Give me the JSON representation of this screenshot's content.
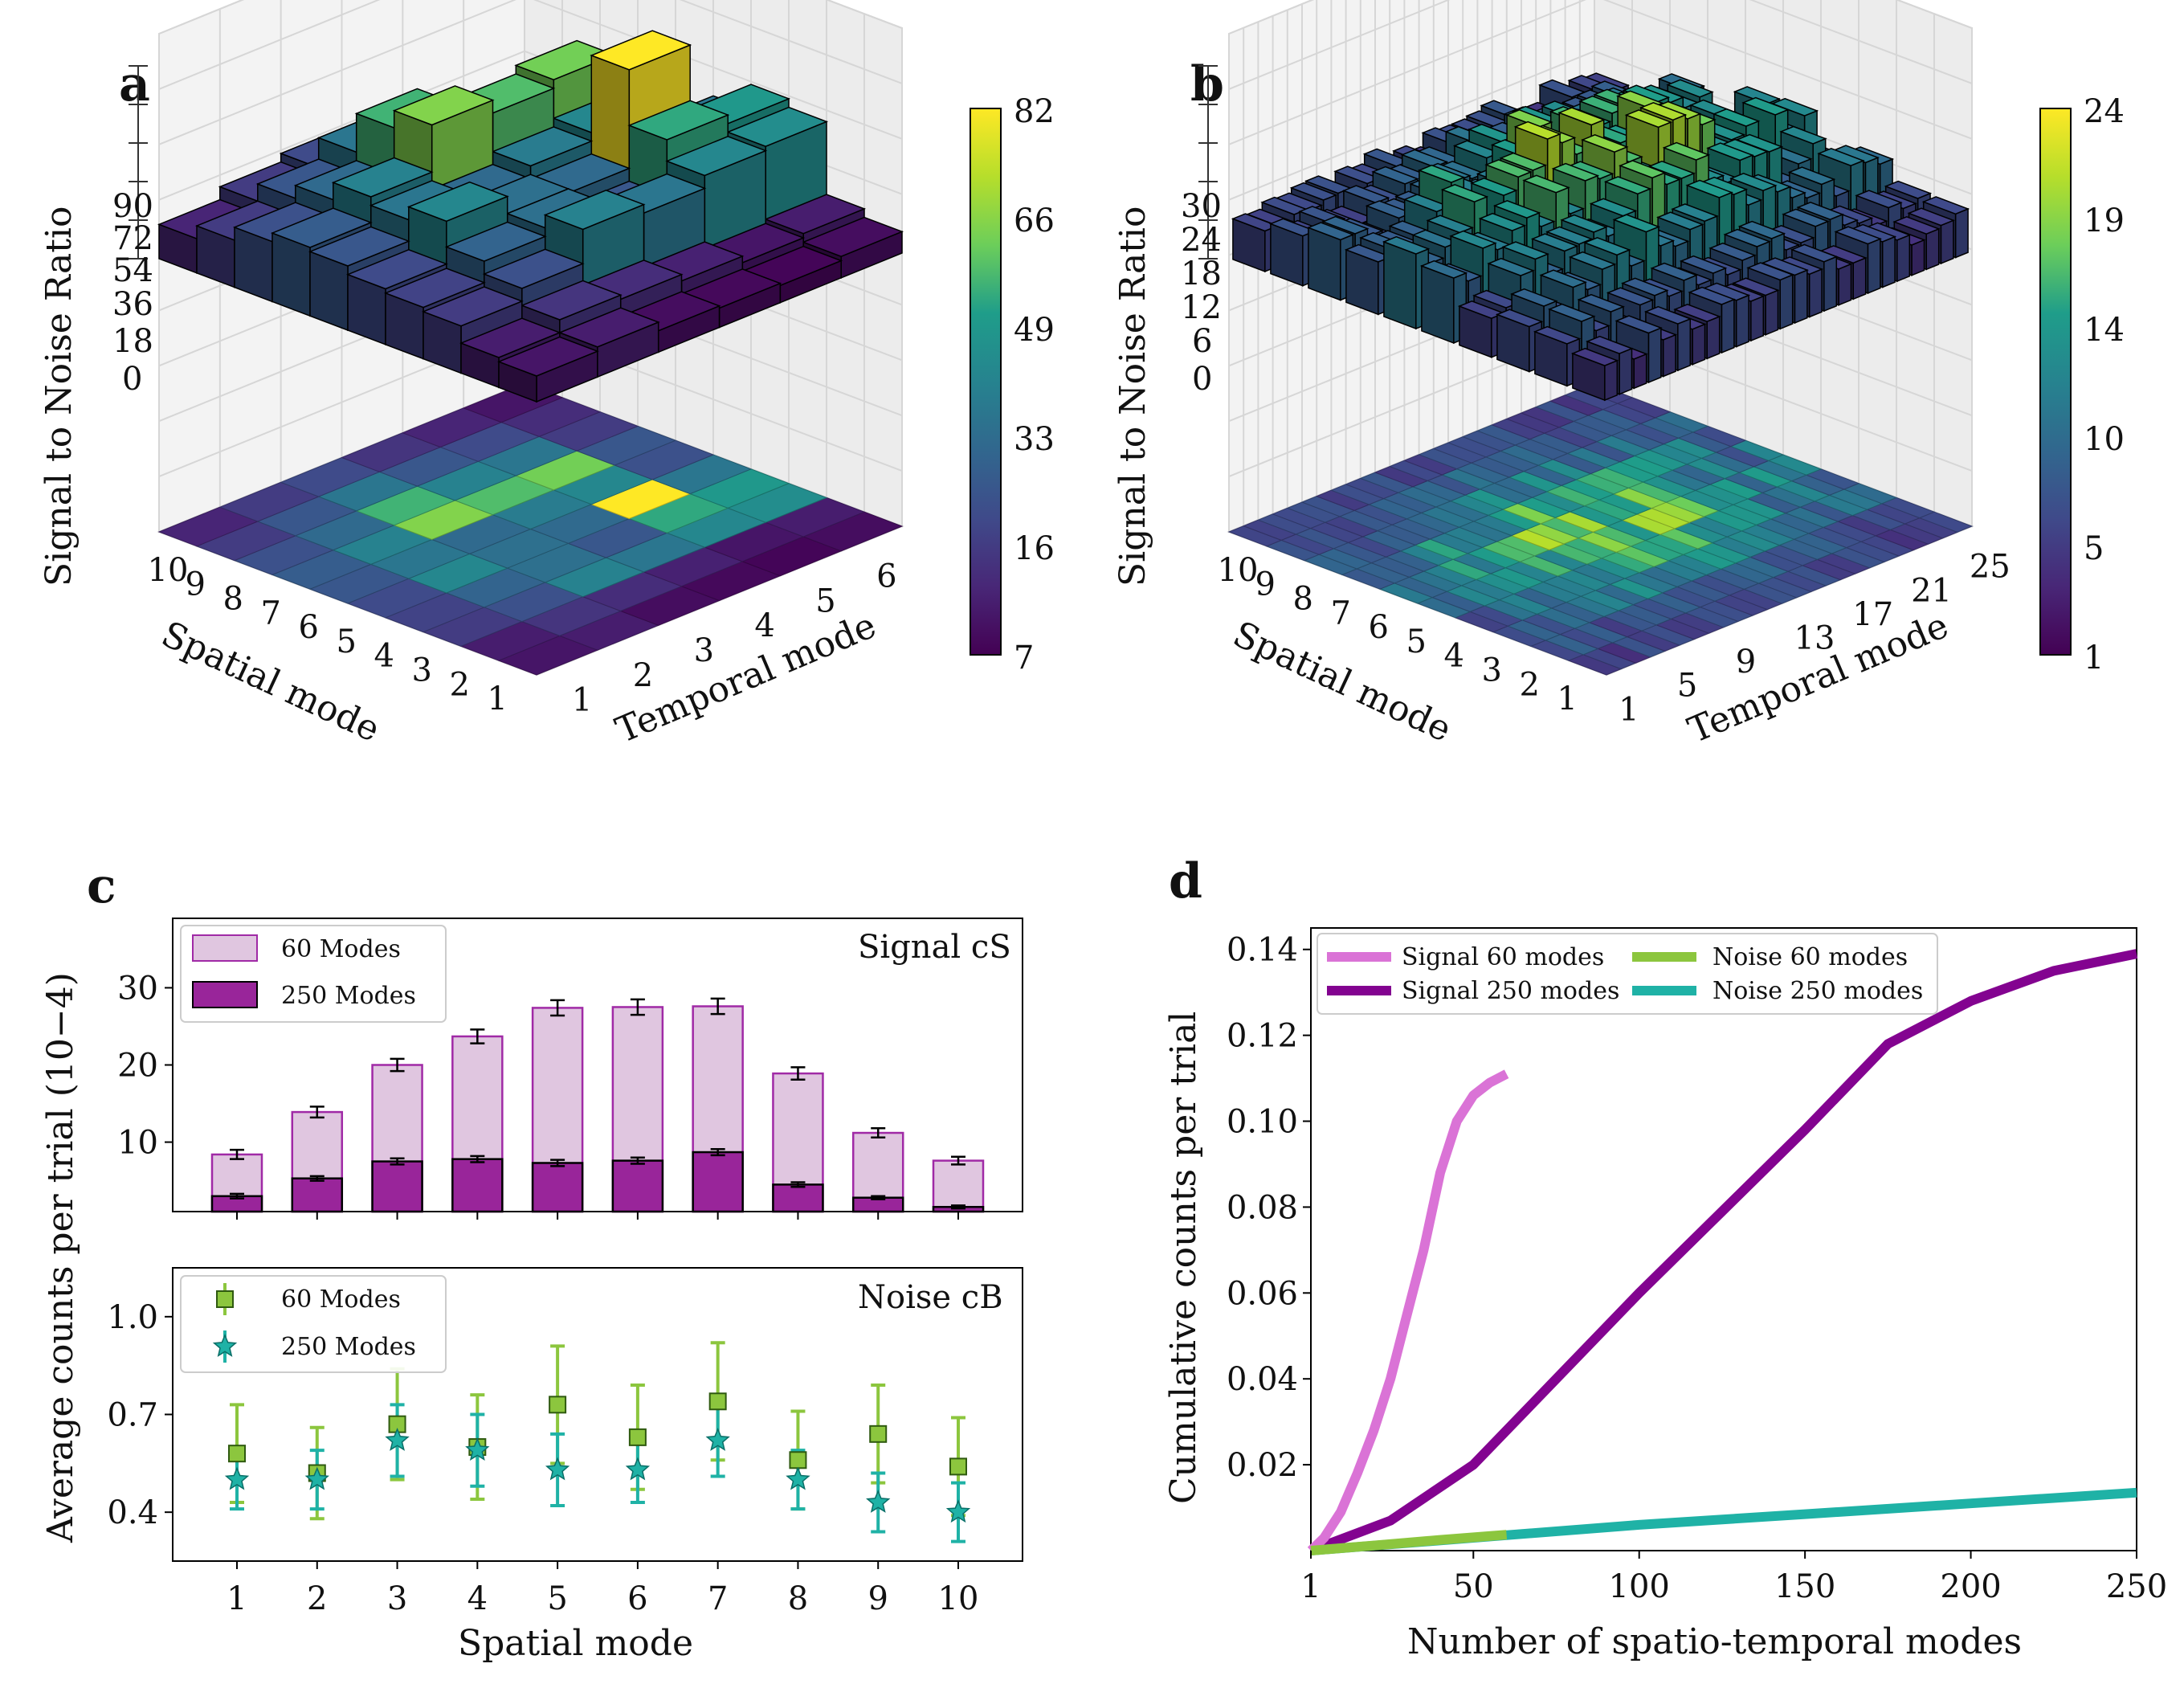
{
  "colors": {
    "signal60": "#da73d6",
    "signal250": "#830390",
    "noise60": "#8cc63e",
    "noise250": "#1fb2a6",
    "bar60_fill": "#e0c6e0",
    "bar60_edge": "#a02aa6",
    "bar250_fill": "#99259a",
    "viridis": [
      "#440154",
      "#482777",
      "#3f4a8a",
      "#31678e",
      "#26838f",
      "#1f9d8a",
      "#6cce5a",
      "#b6de2b",
      "#fee825"
    ]
  },
  "panel_a": {
    "letter": "a",
    "zlabel": "Signal to Noise Ratio",
    "z_ticks": [
      "90",
      "72",
      "54",
      "36",
      "18",
      "0"
    ],
    "xlabel": "Spatial mode",
    "x_ticks": [
      "10",
      "9",
      "8",
      "7",
      "6",
      "5",
      "4",
      "3",
      "2",
      "1"
    ],
    "ylabel": "Temporal mode",
    "y_ticks": [
      "1",
      "2",
      "3",
      "4",
      "5",
      "6"
    ],
    "colorbar_ticks": [
      "82",
      "66",
      "49",
      "33",
      "16",
      "7"
    ],
    "grid_spatial": 10,
    "grid_temporal": 6
  },
  "panel_b": {
    "letter": "b",
    "zlabel": "Signal to Noise Ratio",
    "z_ticks": [
      "30",
      "24",
      "18",
      "12",
      "6",
      "0"
    ],
    "xlabel": "Spatial mode",
    "x_ticks": [
      "10",
      "9",
      "8",
      "7",
      "6",
      "5",
      "4",
      "3",
      "2",
      "1"
    ],
    "ylabel": "Temporal mode",
    "y_ticks": [
      "1",
      "5",
      "9",
      "13",
      "17",
      "21",
      "25"
    ],
    "colorbar_ticks": [
      "24",
      "19",
      "14",
      "10",
      "5",
      "1"
    ],
    "grid_spatial": 10,
    "grid_temporal": 25
  },
  "chart_data": [
    {
      "panel": "c-top",
      "type": "bar",
      "categories": [
        "1",
        "2",
        "3",
        "4",
        "5",
        "6",
        "7",
        "8",
        "9",
        "10"
      ],
      "series": [
        {
          "name": "60 Modes",
          "values": [
            8.4,
            13.9,
            20.0,
            23.7,
            27.4,
            27.5,
            27.6,
            18.9,
            11.2,
            7.6
          ],
          "errors": [
            0.6,
            0.7,
            0.8,
            0.9,
            1.0,
            1.0,
            1.0,
            0.8,
            0.6,
            0.5
          ]
        },
        {
          "name": "250 Modes",
          "values": [
            3.0,
            5.3,
            7.5,
            7.8,
            7.3,
            7.6,
            8.7,
            4.5,
            2.8,
            1.6
          ],
          "errors": [
            0.3,
            0.3,
            0.4,
            0.4,
            0.4,
            0.4,
            0.4,
            0.3,
            0.2,
            0.2
          ]
        }
      ],
      "annotation": "Signal cS",
      "ylim": [
        1,
        39
      ],
      "yticks": [
        "10",
        "20",
        "30"
      ]
    },
    {
      "panel": "c-bottom",
      "type": "scatter",
      "categories": [
        "1",
        "2",
        "3",
        "4",
        "5",
        "6",
        "7",
        "8",
        "9",
        "10"
      ],
      "series": [
        {
          "name": "60 Modes",
          "values": [
            0.58,
            0.52,
            0.67,
            0.6,
            0.73,
            0.63,
            0.74,
            0.56,
            0.64,
            0.54
          ],
          "errors": [
            0.15,
            0.14,
            0.17,
            0.16,
            0.18,
            0.16,
            0.18,
            0.15,
            0.15,
            0.15
          ]
        },
        {
          "name": "250 Modes",
          "values": [
            0.5,
            0.5,
            0.62,
            0.59,
            0.53,
            0.53,
            0.62,
            0.5,
            0.43,
            0.4
          ],
          "errors": [
            0.09,
            0.09,
            0.11,
            0.11,
            0.11,
            0.1,
            0.11,
            0.09,
            0.09,
            0.09
          ]
        }
      ],
      "annotation": "Noise cB",
      "ylim": [
        0.25,
        1.15
      ],
      "yticks": [
        "1.0",
        "0.7",
        "0.4"
      ],
      "xlabel": "Spatial mode",
      "xticks": [
        "1",
        "2",
        "3",
        "4",
        "5",
        "6",
        "7",
        "8",
        "9",
        "10"
      ],
      "shared_ylabel": "Average counts per trial (10−4)"
    },
    {
      "panel": "d",
      "type": "line",
      "title": "",
      "xlabel": "Number of spatio-temporal modes",
      "ylabel": "Cumulative counts per trial",
      "xlim": [
        1,
        250
      ],
      "ylim": [
        0,
        0.145
      ],
      "xticks": [
        "1",
        "50",
        "100",
        "150",
        "200",
        "250"
      ],
      "xtick_values": [
        1,
        50,
        100,
        150,
        200,
        250
      ],
      "yticks": [
        "0.02",
        "0.04",
        "0.06",
        "0.08",
        "0.10",
        "0.12",
        "0.14"
      ],
      "ytick_values": [
        0.02,
        0.04,
        0.06,
        0.08,
        0.1,
        0.12,
        0.14
      ],
      "series": [
        {
          "name": "Signal 60 modes",
          "x": [
            1,
            5,
            10,
            15,
            20,
            25,
            30,
            35,
            40,
            45,
            50,
            55,
            60
          ],
          "y": [
            0.0,
            0.003,
            0.009,
            0.018,
            0.028,
            0.04,
            0.055,
            0.07,
            0.088,
            0.1,
            0.106,
            0.109,
            0.111
          ]
        },
        {
          "name": "Signal 250 modes",
          "x": [
            1,
            25,
            50,
            75,
            100,
            125,
            150,
            175,
            200,
            225,
            250
          ],
          "y": [
            0.0,
            0.007,
            0.02,
            0.04,
            0.06,
            0.079,
            0.098,
            0.118,
            0.128,
            0.135,
            0.139
          ]
        },
        {
          "name": "Noise 60 modes",
          "x": [
            1,
            20,
            40,
            60
          ],
          "y": [
            0.0,
            0.0012,
            0.0025,
            0.0037
          ]
        },
        {
          "name": "Noise 250 modes",
          "x": [
            1,
            50,
            100,
            150,
            200,
            250
          ],
          "y": [
            0.0,
            0.003,
            0.006,
            0.0085,
            0.011,
            0.0135
          ]
        }
      ]
    }
  ],
  "panel_c": {
    "letter": "c"
  },
  "panel_d": {
    "letter": "d"
  }
}
